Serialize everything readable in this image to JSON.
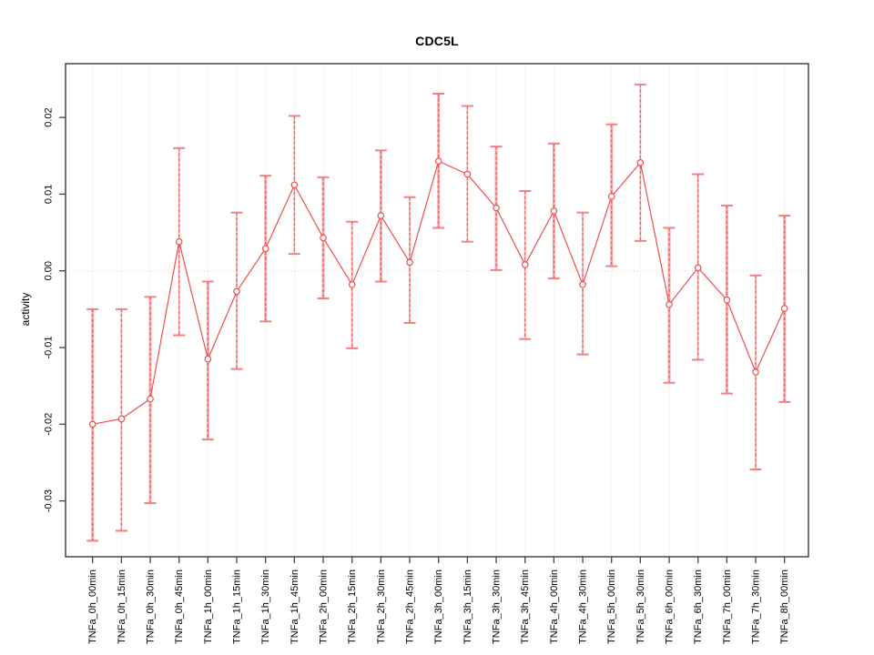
{
  "chart_data": {
    "type": "line",
    "title": "CDC5L",
    "ylabel": "activity",
    "xlabel": "",
    "legend": "none",
    "grid": "vertical dotted gridlines at every category; dotted horizontal line at y=0",
    "ylim": [
      -0.0375,
      0.0268
    ],
    "ytick_values": [
      0.02,
      0.01,
      0.0,
      -0.01,
      -0.02,
      -0.03
    ],
    "ytick_labels": [
      "0.02",
      "0.01",
      "0.00",
      "-0.01",
      "-0.02",
      "-0.03"
    ],
    "categories": [
      "TNFa_0h_00min",
      "TNFa_0h_15min",
      "TNFa_0h_30min",
      "TNFa_0h_45min",
      "TNFa_1h_00min",
      "TNFa_1h_15min",
      "TNFa_1h_30min",
      "TNFa_1h_45min",
      "TNFa_2h_00min",
      "TNFa_2h_15min",
      "TNFa_2h_30min",
      "TNFa_2h_45min",
      "TNFa_3h_00min",
      "TNFa_3h_15min",
      "TNFa_3h_30min",
      "TNFa_3h_45min",
      "TNFa_4h_00min",
      "TNFa_4h_30min",
      "TNFa_5h_00min",
      "TNFa_5h_30min",
      "TNFa_6h_00min",
      "TNFa_6h_30min",
      "TNFa_7h_00min",
      "TNFa_7h_30min",
      "TNFa_8h_00min"
    ],
    "series": [
      {
        "name": "activity",
        "marker": "open-circle",
        "values": [
          -0.02,
          -0.0193,
          -0.0167,
          0.0038,
          -0.0115,
          -0.0027,
          0.0029,
          0.0112,
          0.0043,
          -0.0018,
          0.0072,
          0.0011,
          0.0143,
          0.0126,
          0.0082,
          0.0008,
          0.0078,
          -0.0018,
          0.0097,
          0.0141,
          -0.0044,
          0.0004,
          -0.0038,
          -0.0132,
          -0.0049
        ],
        "err_hi": [
          -0.005,
          -0.005,
          -0.0034,
          0.016,
          -0.0014,
          0.0076,
          0.0124,
          0.0202,
          0.0122,
          0.0064,
          0.0157,
          0.0096,
          0.0231,
          0.0215,
          0.0162,
          0.0104,
          0.0166,
          0.0076,
          0.0191,
          0.0243,
          0.0056,
          0.0126,
          0.0085,
          -0.0006,
          0.0072
        ],
        "err_lo": [
          -0.0352,
          -0.0339,
          -0.0303,
          -0.0084,
          -0.022,
          -0.0128,
          -0.0066,
          0.0022,
          -0.0036,
          -0.0101,
          -0.0014,
          -0.0068,
          0.0056,
          0.0038,
          0.0001,
          -0.0089,
          -0.001,
          -0.0109,
          0.0006,
          0.0039,
          -0.0146,
          -0.0116,
          -0.016,
          -0.0259,
          -0.0171
        ]
      }
    ],
    "colors": {
      "series_line": "#ee4f4f",
      "marker_stroke": "#ee4f4f",
      "error_bar_solid": "#f7abab",
      "error_bar_dash": "#ea5455",
      "error_cap": "#f18080",
      "gridline": "#dcdcdc",
      "zero_line": "#d8d8d8",
      "axis_box": "#454545",
      "tick_text": "#000000"
    }
  }
}
